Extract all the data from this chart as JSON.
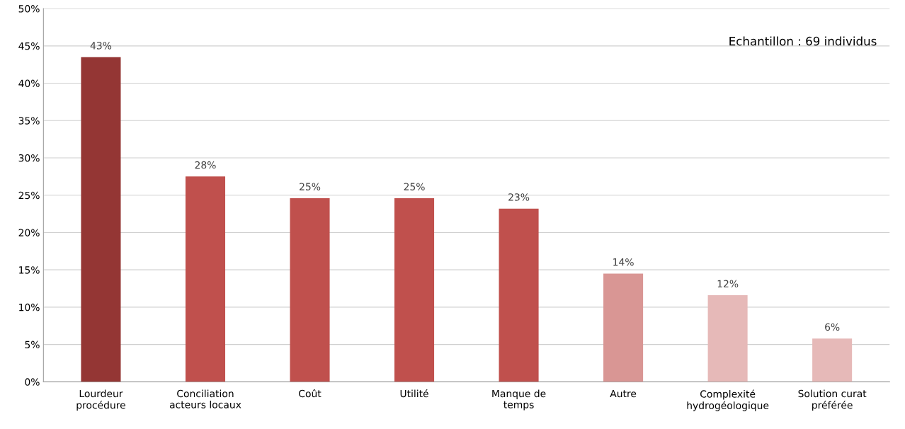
{
  "chart_data": {
    "type": "bar",
    "categories": [
      "Lourdeur\nprocédure",
      "Conciliation\nacteurs locaux",
      "Coût",
      "Utilité",
      "Manque de\ntemps",
      "Autre",
      "Complexité\nhydrogéologique",
      "Solution curat\npréférée"
    ],
    "values": [
      43.5,
      27.5,
      24.6,
      24.6,
      23.2,
      14.5,
      11.6,
      5.8
    ],
    "value_labels": [
      "43%",
      "28%",
      "25%",
      "25%",
      "23%",
      "14%",
      "12%",
      "6%"
    ],
    "colors": [
      "#943634",
      "#c0504d",
      "#c0504d",
      "#c0504d",
      "#c0504d",
      "#d99694",
      "#e6b9b8",
      "#e6b9b8"
    ],
    "ylim": [
      0,
      50
    ],
    "yticks": [
      {
        "value": 0,
        "label": "0%"
      },
      {
        "value": 5,
        "label": "5%"
      },
      {
        "value": 10,
        "label": "10%"
      },
      {
        "value": 15,
        "label": "15%"
      },
      {
        "value": 20,
        "label": "20%"
      },
      {
        "value": 25,
        "label": "25%"
      },
      {
        "value": 30,
        "label": "30%"
      },
      {
        "value": 35,
        "label": "35%"
      },
      {
        "value": 40,
        "label": "40%"
      },
      {
        "value": 45,
        "label": "45%"
      },
      {
        "value": 50,
        "label": "50%"
      }
    ],
    "grid": "y",
    "annotations": [
      "Echantillon : 69 individus"
    ]
  }
}
